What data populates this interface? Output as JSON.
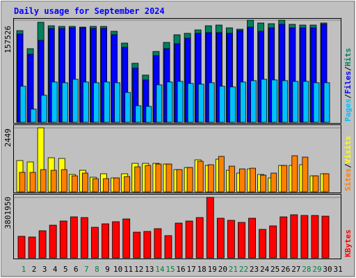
{
  "chart_data": [
    {
      "type": "bar",
      "title": "Daily usage for September 2024",
      "ylim": [
        0,
        157526
      ],
      "yticks": [
        157526
      ],
      "legend_separator": "/",
      "series": [
        {
          "name": "Hits",
          "color": "#00805c",
          "values": [
            141400,
            113600,
            154300,
            148900,
            147900,
            147900,
            146800,
            147900,
            147900,
            140400,
            122200,
            91100,
            72900,
            109300,
            123200,
            135000,
            137200,
            142500,
            148900,
            150000,
            145700,
            143600,
            157526,
            153200,
            152100,
            157500,
            151100,
            150000,
            150000,
            153200,
            null
          ]
        },
        {
          "name": "Files",
          "color": "#0000ff",
          "values": [
            136100,
            105000,
            126400,
            144700,
            144700,
            145700,
            145700,
            144700,
            144700,
            135000,
            115700,
            83600,
            65400,
            102900,
            113600,
            121100,
            129700,
            137200,
            138200,
            138200,
            137200,
            141500,
            146800,
            140400,
            145700,
            151100,
            145700,
            145700,
            145700,
            151100,
            null
          ]
        },
        {
          "name": "Pages",
          "color": "#00c0ff",
          "values": [
            55700,
            20400,
            41800,
            62200,
            61100,
            66400,
            62200,
            61100,
            62200,
            61100,
            46100,
            25700,
            24600,
            57900,
            62200,
            63200,
            60000,
            58900,
            61100,
            55700,
            54700,
            62200,
            64300,
            66400,
            65400,
            64300,
            63200,
            63200,
            61100,
            61100,
            null
          ]
        }
      ]
    },
    {
      "type": "bar",
      "ylim": [
        0,
        2449
      ],
      "yticks": [
        2449
      ],
      "legend_separator": "/",
      "series": [
        {
          "name": "Visits",
          "color": "#ffff00",
          "values": [
            1198,
            1144,
            2449,
            1304,
            1277,
            665,
            825,
            559,
            692,
            532,
            692,
            1091,
            1091,
            1091,
            1064,
            851,
            931,
            1224,
            1011,
            1250,
            825,
            718,
            878,
            665,
            532,
            1011,
            1011,
            1038,
            612,
            692,
            null
          ]
        },
        {
          "name": "Sites",
          "color": "#ff8000",
          "values": [
            745,
            745,
            851,
            825,
            851,
            612,
            718,
            505,
            505,
            532,
            585,
            958,
            1011,
            1064,
            1064,
            851,
            931,
            1170,
            1038,
            1357,
            984,
            878,
            904,
            638,
            718,
            1011,
            1383,
            1330,
            612,
            692,
            null
          ]
        }
      ]
    },
    {
      "type": "bar",
      "ylim": [
        0,
        3801950
      ],
      "yticks": [
        3801950
      ],
      "categories": [
        "1",
        "2",
        "3",
        "4",
        "5",
        "6",
        "7",
        "8",
        "9",
        "10",
        "11",
        "12",
        "13",
        "14",
        "15",
        "16",
        "17",
        "18",
        "19",
        "20",
        "21",
        "22",
        "23",
        "24",
        "25",
        "26",
        "27",
        "28",
        "29",
        "30",
        "31"
      ],
      "category_colors": [
        "#008040",
        "#000000",
        "#000000",
        "#000000",
        "#000000",
        "#000000",
        "#008040",
        "#008040",
        "#000000",
        "#000000",
        "#000000",
        "#000000",
        "#000000",
        "#008040",
        "#008040",
        "#000000",
        "#000000",
        "#000000",
        "#000000",
        "#000000",
        "#008040",
        "#008040",
        "#000000",
        "#000000",
        "#000000",
        "#000000",
        "#000000",
        "#008040",
        "#008040",
        "#000000",
        "#000000"
      ],
      "series": [
        {
          "name": "KBytes",
          "color": "#ff0000",
          "values": [
            1354700,
            1311000,
            1704300,
            2053900,
            2316100,
            2578300,
            2534600,
            1922800,
            2141300,
            2272400,
            2447200,
            1616900,
            1660600,
            1835400,
            1398400,
            2185000,
            2316100,
            2534600,
            3801950,
            2490900,
            2359800,
            2228700,
            2490900,
            1791700,
            2010200,
            2578300,
            2709400,
            2665700,
            2665700,
            2622000,
            null
          ]
        }
      ]
    }
  ]
}
